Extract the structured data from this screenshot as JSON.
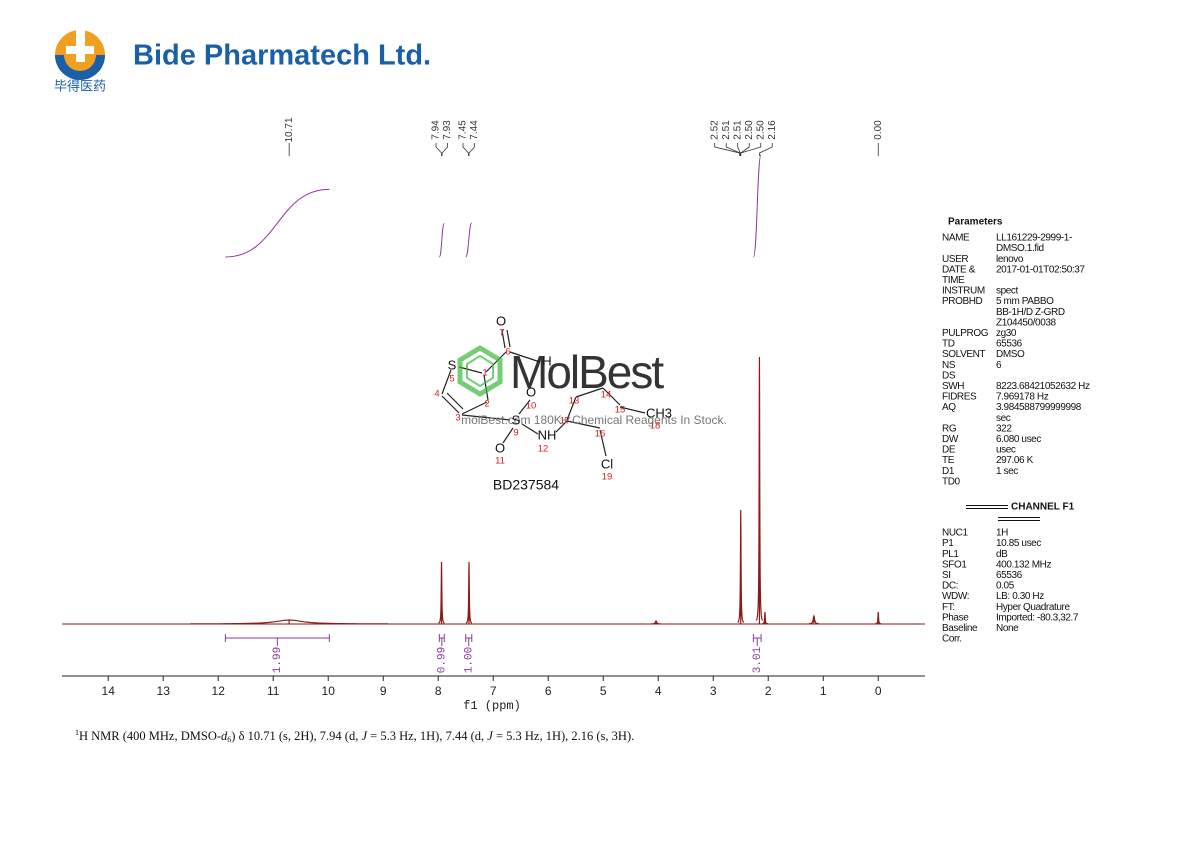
{
  "header": {
    "company": "Bide Pharmatech Ltd.",
    "company_cn": "毕得医药"
  },
  "chart_data": {
    "type": "spectrum",
    "xlabel": "f1 (ppm)",
    "xlim": [
      14.84,
      -0.85
    ],
    "xticks": [
      14,
      13,
      12,
      11,
      10,
      9,
      8,
      7,
      6,
      5,
      4,
      3,
      2,
      1,
      0
    ],
    "ylim": [
      0,
      270
    ],
    "color": "#8b1a1a",
    "peaks": {
      "x": [
        10.71,
        7.94,
        7.44,
        4.04,
        2.5,
        2.16,
        2.06,
        1.17,
        0.0
      ],
      "values": [
        4,
        62,
        62,
        3,
        114,
        267,
        12,
        8,
        12
      ],
      "widths": [
        0.6,
        0.01,
        0.01,
        0.03,
        0.01,
        0.01,
        0.01,
        0.03,
        0.01
      ]
    },
    "peak_labels": [
      10.71,
      7.94,
      7.93,
      7.45,
      7.44,
      2.52,
      2.51,
      2.51,
      {
        "value": 2.5,
        "label": "2.50"
      },
      {
        "value": 2.5,
        "label": "2.50"
      },
      2.16,
      {
        "value": 0,
        "label": "0.00"
      }
    ],
    "integral_color": "#8b3a9b",
    "integrals": [
      {
        "from": 11.87,
        "to": 9.98,
        "value": 1.99
      },
      {
        "from": 7.98,
        "to": 7.89,
        "value": 0.99
      },
      {
        "from": 7.5,
        "to": 7.39,
        "value": {
          "value": 1,
          "label": "1.00"
        }
      },
      {
        "from": 2.27,
        "to": 2.13,
        "value": 3.01
      }
    ]
  },
  "structure": {
    "compound_id": "BD237584",
    "atoms": [
      "O",
      "S",
      "H",
      "O",
      "S",
      "NH",
      "O",
      "CH3",
      "Cl"
    ],
    "numbers": [
      "7",
      "6",
      "5",
      "1",
      "4",
      "2",
      "3",
      "10",
      "13",
      "14",
      "15",
      "9",
      "17",
      "16",
      "12",
      "11",
      "18",
      "19"
    ]
  },
  "watermark": {
    "brand": "MolBest",
    "tagline": "molBest.com 180K+ Chemical Reagents In Stock."
  },
  "parameters": {
    "title": "Parameters",
    "rows": [
      {
        "key": "NAME",
        "value": "LL161229-2999-1-"
      },
      {
        "value": "DMSO.1.fid"
      },
      {
        "key": "USER",
        "value": "lenovo"
      },
      {
        "key": "DATE &",
        "value": "2017-01-01T02:50:37"
      },
      {
        "key": "TIME"
      },
      {
        "key": "INSTRUM",
        "value": "spect"
      },
      {
        "key": "PROBHD",
        "value": "5 mm PABBO"
      },
      {
        "value": "BB-1H/D Z-GRD"
      },
      {
        "value": "Z104450/0038"
      },
      {
        "key": "PULPROG",
        "value": "zg30"
      },
      {
        "key": "TD",
        "value": "65536"
      },
      {
        "key": "SOLVENT",
        "value": "DMSO"
      },
      {
        "key": "NS",
        "value": "6"
      },
      {
        "key": "DS"
      },
      {
        "key": "SWH",
        "value": "8223.68421052632 Hz"
      },
      {
        "key": "FIDRES",
        "value": "7.969178 Hz"
      },
      {
        "key": "AQ",
        "value": "3.984588799999998"
      },
      {
        "value": "sec"
      },
      {
        "key": "RG",
        "value": "322"
      },
      {
        "key": "DW",
        "value": "6.080 usec"
      },
      {
        "key": "DE",
        "value": "usec"
      },
      {
        "key": "TE",
        "value": "297.06 K"
      },
      {
        "key": "D1",
        "value": "1 sec"
      },
      {
        "key": "TD0"
      }
    ],
    "channel_title": "CHANNEL F1",
    "channel_rows": [
      {
        "key": "NUC1",
        "value": "1H"
      },
      {
        "key": "P1",
        "value": "10.85 usec"
      },
      {
        "key": "PL1",
        "value": "dB"
      },
      {
        "key": "SFO1",
        "value": "400.132 MHz"
      },
      {
        "key": "SI",
        "value": "65536"
      },
      {
        "key": "DC:",
        "value": "0.05"
      },
      {
        "key": "WDW:",
        "value": "LB: 0.30 Hz"
      },
      {
        "key": "FT:",
        "value": "Hyper Quadrature"
      },
      {
        "key": "Phase",
        "value": "Imported: -80.3,32.7"
      },
      {
        "key": "Baseline",
        "value": "None"
      },
      {
        "key": "Corr."
      }
    ]
  },
  "footnote": [
    "1",
    "H NMR (400 MHz, DMSO-",
    "d",
    "6",
    ") δ 10.71 (s, 2H), 7.94 (d, ",
    "J",
    " = 5.3 Hz, 1H), 7.44 (d, ",
    "J",
    " = 5.3 Hz, 1H), 2.16 (s, 3H)."
  ]
}
